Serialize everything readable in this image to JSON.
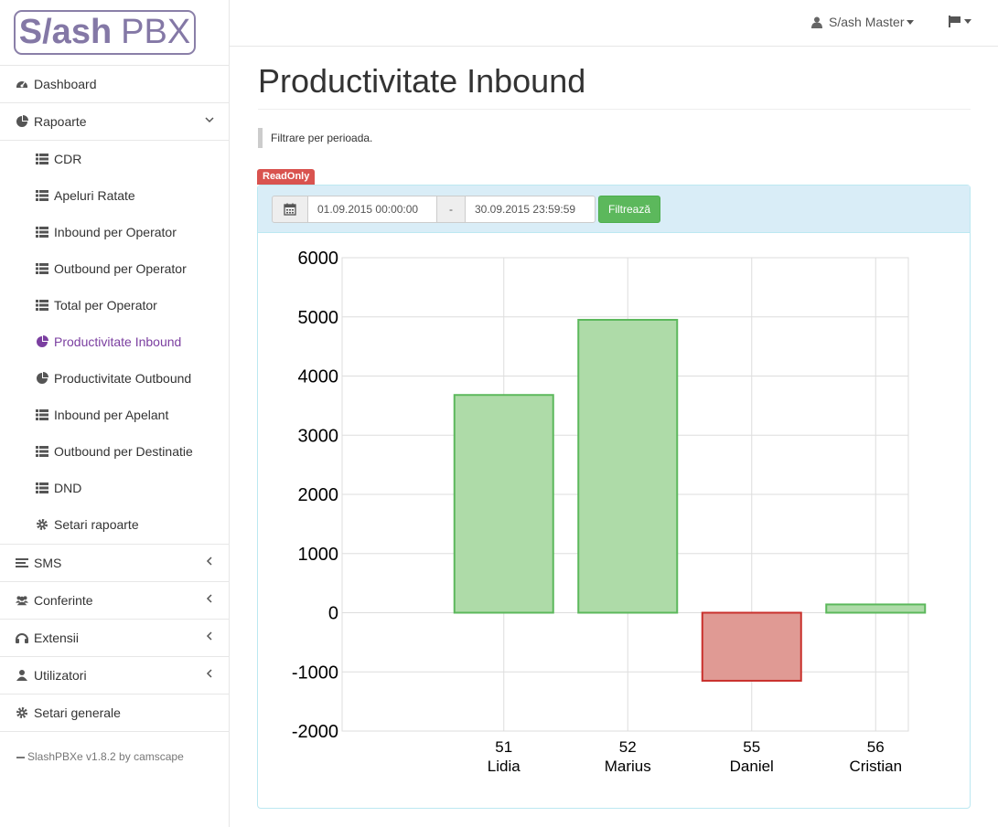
{
  "logo": {
    "slash_text": "S/ash",
    "pbx_text": "PBX"
  },
  "sidebar": {
    "dashboard": "Dashboard",
    "rapoarte": "Rapoarte",
    "rapoarte_items": [
      {
        "label": "CDR",
        "icon": "list-icon"
      },
      {
        "label": "Apeluri Ratate",
        "icon": "list-icon"
      },
      {
        "label": "Inbound per Operator",
        "icon": "list-icon"
      },
      {
        "label": "Outbound per Operator",
        "icon": "list-icon"
      },
      {
        "label": "Total per Operator",
        "icon": "list-icon"
      },
      {
        "label": "Productivitate Inbound",
        "icon": "pie-chart-icon",
        "active": true
      },
      {
        "label": "Productivitate Outbound",
        "icon": "pie-chart-icon"
      },
      {
        "label": "Inbound per Apelant",
        "icon": "list-icon"
      },
      {
        "label": "Outbound per Destinatie",
        "icon": "list-icon"
      },
      {
        "label": "DND",
        "icon": "list-icon"
      },
      {
        "label": "Setari rapoarte",
        "icon": "gear-icon"
      }
    ],
    "sms": "SMS",
    "conferinte": "Conferinte",
    "extensii": "Extensii",
    "utilizatori": "Utilizatori",
    "setari_generale": "Setari generale",
    "version": "SlashPBXe v1.8.2 by camscape"
  },
  "topbar": {
    "user": "S/ash Master"
  },
  "main": {
    "title": "Productivitate Inbound",
    "hint": "Filtrare per perioada.",
    "badge": "ReadOnly",
    "date_from": "01.09.2015 00:00:00",
    "date_sep": "-",
    "date_to": "30.09.2015 23:59:59",
    "filter_button": "Filtrează"
  },
  "chart_data": {
    "type": "bar",
    "categories": [
      [
        "51",
        "Lidia"
      ],
      [
        "52",
        "Marius"
      ],
      [
        "55",
        "Daniel"
      ],
      [
        "56",
        "Cristian"
      ]
    ],
    "values": [
      3680,
      4950,
      -1150,
      140
    ],
    "ylim": [
      -2000,
      6000
    ],
    "yticks": [
      6000,
      5000,
      4000,
      3000,
      2000,
      1000,
      0,
      -1000,
      -2000
    ],
    "grid": true,
    "colors": {
      "positive_fill": "#aedba8",
      "positive_stroke": "#5cb85c",
      "negative_fill": "#e09a94",
      "negative_stroke": "#c9302c"
    }
  }
}
